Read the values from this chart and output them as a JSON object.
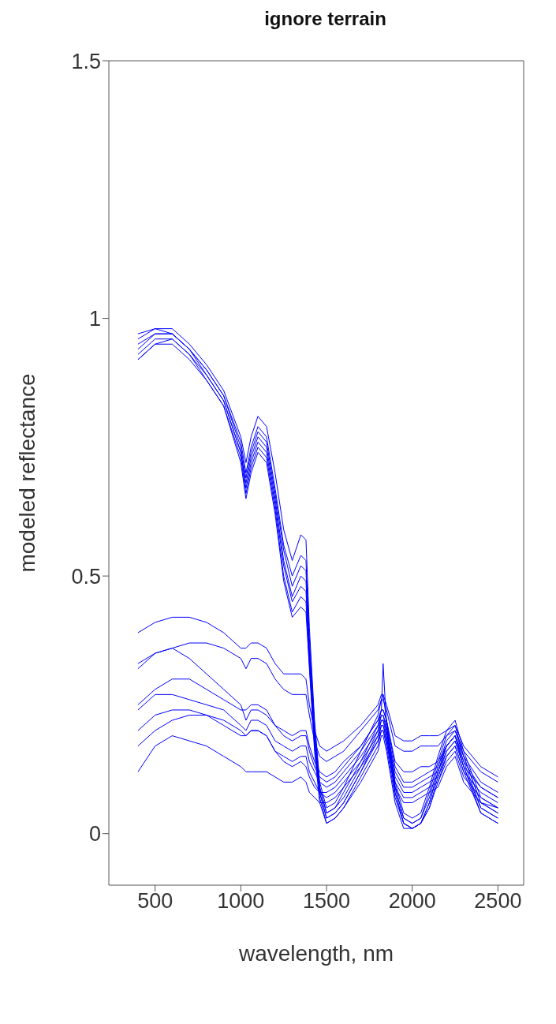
{
  "chart_data": {
    "type": "line",
    "title": "ignore terrain",
    "xlabel": "wavelength, nm",
    "ylabel": "modeled reflectance",
    "marker": "none",
    "xlim": [
      230,
      2650
    ],
    "ylim": [
      -0.1,
      1.5
    ],
    "xticks": [
      500,
      1000,
      1500,
      2000,
      2500
    ],
    "yticks": [
      0,
      0.5,
      1,
      1.5
    ],
    "x": [
      400,
      500,
      600,
      700,
      800,
      900,
      1000,
      1030,
      1060,
      1100,
      1150,
      1200,
      1250,
      1300,
      1350,
      1380,
      1400,
      1430,
      1460,
      1500,
      1550,
      1600,
      1700,
      1800,
      1820,
      1830,
      1850,
      1900,
      1950,
      2000,
      2050,
      2100,
      2150,
      2200,
      2250,
      2300,
      2400,
      2500
    ],
    "series": [
      {
        "color": "#0000ff",
        "values": [
          0.97,
          0.98,
          0.98,
          0.95,
          0.91,
          0.86,
          0.77,
          0.72,
          0.77,
          0.81,
          0.79,
          0.7,
          0.59,
          0.53,
          0.58,
          0.57,
          0.4,
          0.22,
          0.1,
          0.05,
          0.06,
          0.09,
          0.16,
          0.23,
          0.26,
          0.27,
          0.22,
          0.1,
          0.04,
          0.03,
          0.04,
          0.09,
          0.15,
          0.2,
          0.22,
          0.16,
          0.07,
          0.05
        ]
      },
      {
        "color": "#0000ff",
        "values": [
          0.96,
          0.98,
          0.97,
          0.94,
          0.9,
          0.85,
          0.76,
          0.7,
          0.75,
          0.79,
          0.77,
          0.67,
          0.56,
          0.5,
          0.54,
          0.53,
          0.38,
          0.21,
          0.09,
          0.04,
          0.05,
          0.08,
          0.14,
          0.21,
          0.24,
          0.33,
          0.21,
          0.09,
          0.03,
          0.02,
          0.03,
          0.08,
          0.14,
          0.19,
          0.21,
          0.15,
          0.06,
          0.04
        ]
      },
      {
        "color": "#0000ff",
        "values": [
          0.95,
          0.97,
          0.97,
          0.94,
          0.9,
          0.85,
          0.75,
          0.69,
          0.74,
          0.78,
          0.76,
          0.66,
          0.55,
          0.48,
          0.52,
          0.51,
          0.36,
          0.2,
          0.09,
          0.04,
          0.05,
          0.07,
          0.13,
          0.2,
          0.23,
          0.23,
          0.2,
          0.09,
          0.03,
          0.02,
          0.03,
          0.07,
          0.13,
          0.18,
          0.2,
          0.15,
          0.06,
          0.04
        ]
      },
      {
        "color": "#0000ff",
        "values": [
          0.94,
          0.97,
          0.97,
          0.94,
          0.89,
          0.84,
          0.74,
          0.68,
          0.73,
          0.77,
          0.75,
          0.65,
          0.53,
          0.46,
          0.5,
          0.49,
          0.35,
          0.19,
          0.08,
          0.03,
          0.04,
          0.06,
          0.12,
          0.19,
          0.22,
          0.22,
          0.19,
          0.08,
          0.02,
          0.01,
          0.02,
          0.06,
          0.12,
          0.17,
          0.19,
          0.14,
          0.05,
          0.03
        ]
      },
      {
        "color": "#0000ff",
        "values": [
          0.93,
          0.96,
          0.96,
          0.93,
          0.89,
          0.84,
          0.74,
          0.67,
          0.72,
          0.76,
          0.74,
          0.64,
          0.52,
          0.45,
          0.48,
          0.47,
          0.34,
          0.18,
          0.08,
          0.03,
          0.04,
          0.06,
          0.12,
          0.18,
          0.21,
          0.21,
          0.18,
          0.08,
          0.02,
          0.01,
          0.02,
          0.06,
          0.12,
          0.17,
          0.19,
          0.13,
          0.05,
          0.03
        ]
      },
      {
        "color": "#0000ff",
        "values": [
          0.92,
          0.95,
          0.96,
          0.93,
          0.88,
          0.83,
          0.73,
          0.66,
          0.71,
          0.75,
          0.73,
          0.63,
          0.5,
          0.43,
          0.46,
          0.45,
          0.33,
          0.17,
          0.07,
          0.02,
          0.03,
          0.05,
          0.11,
          0.17,
          0.2,
          0.2,
          0.17,
          0.07,
          0.02,
          0.01,
          0.02,
          0.05,
          0.11,
          0.16,
          0.18,
          0.13,
          0.04,
          0.02
        ]
      },
      {
        "color": "#0000ff",
        "values": [
          0.92,
          0.95,
          0.95,
          0.92,
          0.88,
          0.83,
          0.72,
          0.65,
          0.7,
          0.74,
          0.72,
          0.62,
          0.49,
          0.42,
          0.44,
          0.43,
          0.32,
          0.16,
          0.06,
          0.02,
          0.03,
          0.05,
          0.1,
          0.16,
          0.19,
          0.19,
          0.16,
          0.06,
          0.01,
          0.01,
          0.02,
          0.05,
          0.1,
          0.15,
          0.17,
          0.12,
          0.04,
          0.02
        ]
      },
      {
        "color": "#0000ff",
        "values": [
          0.39,
          0.41,
          0.42,
          0.42,
          0.41,
          0.39,
          0.36,
          0.36,
          0.37,
          0.37,
          0.36,
          0.33,
          0.31,
          0.31,
          0.31,
          0.3,
          0.25,
          0.2,
          0.17,
          0.16,
          0.17,
          0.18,
          0.21,
          0.25,
          0.27,
          0.27,
          0.25,
          0.19,
          0.18,
          0.18,
          0.19,
          0.19,
          0.19,
          0.2,
          0.21,
          0.17,
          0.13,
          0.11
        ]
      },
      {
        "color": "#0000ff",
        "values": [
          0.33,
          0.35,
          0.36,
          0.37,
          0.37,
          0.36,
          0.34,
          0.32,
          0.34,
          0.34,
          0.33,
          0.3,
          0.28,
          0.27,
          0.27,
          0.27,
          0.23,
          0.18,
          0.15,
          0.14,
          0.15,
          0.16,
          0.2,
          0.24,
          0.26,
          0.26,
          0.24,
          0.17,
          0.16,
          0.16,
          0.17,
          0.17,
          0.17,
          0.19,
          0.2,
          0.16,
          0.12,
          0.1
        ]
      },
      {
        "color": "#0000ff",
        "values": [
          0.32,
          0.35,
          0.36,
          0.34,
          0.31,
          0.28,
          0.25,
          0.22,
          0.24,
          0.24,
          0.23,
          0.21,
          0.2,
          0.19,
          0.2,
          0.2,
          0.17,
          0.14,
          0.12,
          0.11,
          0.12,
          0.14,
          0.17,
          0.22,
          0.24,
          0.24,
          0.22,
          0.14,
          0.12,
          0.12,
          0.13,
          0.13,
          0.14,
          0.17,
          0.19,
          0.15,
          0.1,
          0.08
        ]
      },
      {
        "color": "#0000ff",
        "values": [
          0.25,
          0.28,
          0.3,
          0.3,
          0.28,
          0.26,
          0.24,
          0.24,
          0.25,
          0.25,
          0.24,
          0.21,
          0.19,
          0.18,
          0.19,
          0.19,
          0.16,
          0.13,
          0.11,
          0.1,
          0.11,
          0.13,
          0.17,
          0.22,
          0.24,
          0.24,
          0.22,
          0.13,
          0.1,
          0.1,
          0.11,
          0.12,
          0.13,
          0.17,
          0.19,
          0.14,
          0.09,
          0.07
        ]
      },
      {
        "color": "#0000ff",
        "values": [
          0.24,
          0.27,
          0.27,
          0.26,
          0.25,
          0.24,
          0.21,
          0.2,
          0.22,
          0.22,
          0.21,
          0.18,
          0.17,
          0.16,
          0.17,
          0.17,
          0.14,
          0.12,
          0.1,
          0.09,
          0.1,
          0.12,
          0.16,
          0.21,
          0.23,
          0.23,
          0.21,
          0.12,
          0.09,
          0.09,
          0.1,
          0.11,
          0.12,
          0.16,
          0.18,
          0.13,
          0.09,
          0.07
        ]
      },
      {
        "color": "#0000ff",
        "values": [
          0.2,
          0.23,
          0.24,
          0.24,
          0.23,
          0.21,
          0.19,
          0.19,
          0.2,
          0.2,
          0.19,
          0.16,
          0.15,
          0.14,
          0.15,
          0.15,
          0.12,
          0.1,
          0.08,
          0.08,
          0.09,
          0.11,
          0.15,
          0.2,
          0.22,
          0.22,
          0.2,
          0.11,
          0.08,
          0.08,
          0.09,
          0.1,
          0.11,
          0.15,
          0.17,
          0.12,
          0.08,
          0.06
        ]
      },
      {
        "color": "#0000ff",
        "values": [
          0.17,
          0.2,
          0.22,
          0.23,
          0.23,
          0.22,
          0.2,
          0.19,
          0.2,
          0.2,
          0.19,
          0.16,
          0.14,
          0.13,
          0.14,
          0.13,
          0.11,
          0.09,
          0.08,
          0.07,
          0.08,
          0.1,
          0.14,
          0.19,
          0.21,
          0.21,
          0.19,
          0.1,
          0.07,
          0.07,
          0.08,
          0.09,
          0.1,
          0.14,
          0.16,
          0.11,
          0.07,
          0.05
        ]
      },
      {
        "color": "#0000ff",
        "values": [
          0.12,
          0.17,
          0.19,
          0.18,
          0.17,
          0.15,
          0.13,
          0.12,
          0.12,
          0.12,
          0.12,
          0.11,
          0.1,
          0.1,
          0.11,
          0.1,
          0.08,
          0.07,
          0.06,
          0.06,
          0.07,
          0.09,
          0.13,
          0.18,
          0.2,
          0.2,
          0.18,
          0.09,
          0.06,
          0.06,
          0.07,
          0.08,
          0.09,
          0.13,
          0.15,
          0.1,
          0.06,
          0.05
        ]
      }
    ]
  }
}
